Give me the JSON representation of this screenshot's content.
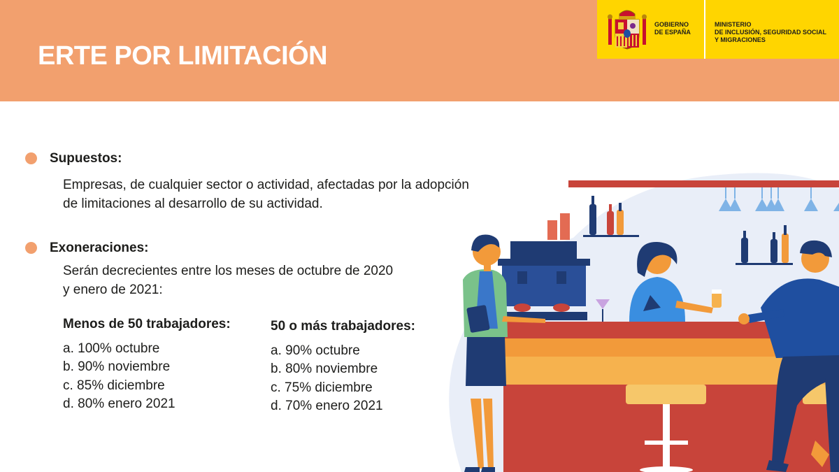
{
  "header": {
    "title": "ERTE POR LIMITACIÓN",
    "background_color": "#f2a06e"
  },
  "gov_logo": {
    "gobierno_text": "GOBIERNO\nDE ESPAÑA",
    "ministerio_text": "MINISTERIO\nDE INCLUSIÓN, SEGURIDAD SOCIAL\nY MIGRACIONES",
    "background_color": "#ffd500"
  },
  "sections": {
    "supuestos": {
      "heading": "Supuestos:",
      "body": "Empresas, de cualquier sector o actividad, afectadas por la adopción\nde limitaciones al desarrollo de su actividad."
    },
    "exoneraciones": {
      "heading": "Exoneraciones:",
      "body": "Serán decrecientes entre los meses de octubre de 2020\ny enero de 2021:"
    }
  },
  "columns": [
    {
      "heading": "Menos de 50 trabajadores:",
      "items": [
        "a. 100% octubre",
        "b. 90% noviembre",
        "c. 85% diciembre",
        "d. 80% enero 2021"
      ]
    },
    {
      "heading": "50 o más trabajadores:",
      "items": [
        "a. 90% octubre",
        "b. 80% noviembre",
        "c. 75% diciembre",
        "d. 70% enero 2021"
      ]
    }
  ],
  "illustration": {
    "icon": "bar-scene-illustration",
    "bullet_color": "#f2a06e"
  }
}
